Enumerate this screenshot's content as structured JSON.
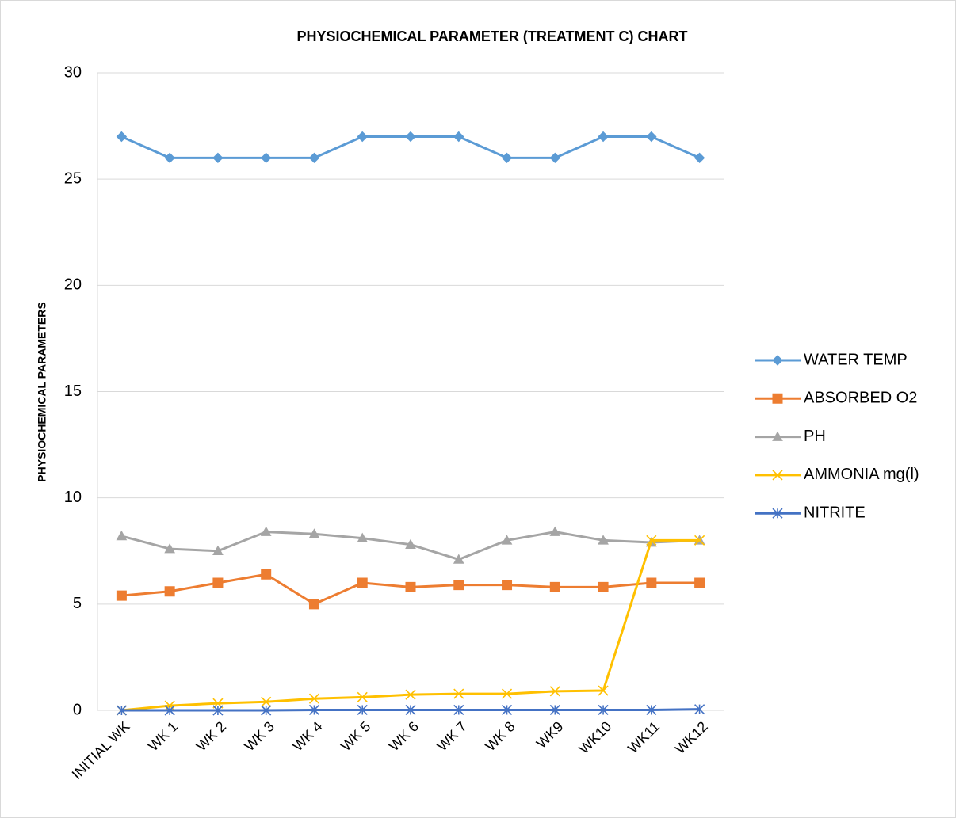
{
  "chart_data": {
    "type": "line",
    "title": "PHYSIOCHEMICAL PARAMETER (TREATMENT C) CHART",
    "y_label": "PHYSIOCHEMICAL PARAMETERS",
    "categories": [
      "INITIAL WK",
      "WK 1",
      "WK 2",
      "WK 3",
      "WK 4",
      "WK 5",
      "WK 6",
      "WK 7",
      "WK 8",
      "WK9",
      "WK10",
      "WK11",
      "WK12"
    ],
    "series": [
      {
        "name": "WATER TEMP",
        "color": "#5b9bd5",
        "marker": "diamond",
        "values": [
          27,
          26,
          26,
          26,
          26,
          27,
          27,
          27,
          26,
          26,
          27,
          27,
          26
        ]
      },
      {
        "name": "ABSORBED O2",
        "color": "#ed7d31",
        "marker": "square",
        "values": [
          5.4,
          5.6,
          6.0,
          6.4,
          5.0,
          6.0,
          5.8,
          5.9,
          5.9,
          5.8,
          5.8,
          6.0,
          6.0
        ]
      },
      {
        "name": "PH",
        "color": "#a5a5a5",
        "marker": "triangle",
        "values": [
          8.2,
          7.6,
          7.5,
          8.4,
          8.3,
          8.1,
          7.8,
          7.1,
          8.0,
          8.4,
          8.0,
          7.9,
          8.0
        ]
      },
      {
        "name": "AMMONIA mg(l)",
        "color": "#ffc000",
        "marker": "x",
        "values": [
          0,
          0.22,
          0.33,
          0.4,
          0.55,
          0.62,
          0.74,
          0.78,
          0.78,
          0.9,
          0.93,
          8.0,
          8.0
        ]
      },
      {
        "name": "NITRITE",
        "color": "#4472c4",
        "marker": "star",
        "values": [
          0,
          0,
          0,
          0,
          0.02,
          0.02,
          0.02,
          0.02,
          0.02,
          0.02,
          0.02,
          0.02,
          0.05
        ]
      }
    ],
    "ylim": [
      0,
      30
    ],
    "yticks": [
      0,
      5,
      10,
      15,
      20,
      25,
      30
    ],
    "grid": true,
    "legend": "right"
  }
}
